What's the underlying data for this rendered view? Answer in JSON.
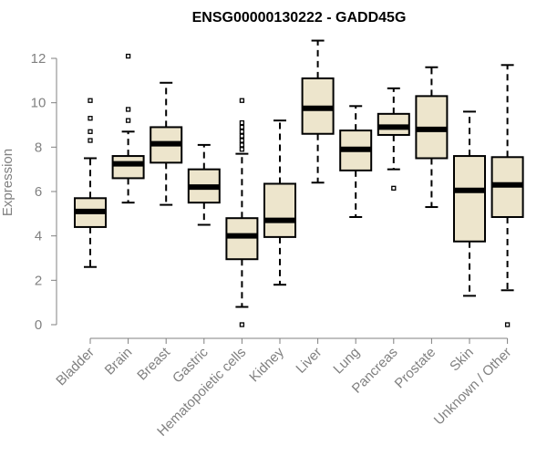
{
  "chart_data": {
    "type": "boxplot",
    "title": "ENSG00000130222 - GADD45G",
    "xlabel": "",
    "ylabel": "Expression",
    "ylim": [
      0,
      12
    ],
    "yticks": [
      0,
      2,
      4,
      6,
      8,
      10,
      12
    ],
    "colors": {
      "box_fill": "#ede5cc",
      "stroke": "#000000",
      "axis": "#808080",
      "title": "#000000"
    },
    "categories": [
      "Bladder",
      "Brain",
      "Breast",
      "Gastric",
      "Hematopoietic cells",
      "Kidney",
      "Liver",
      "Lung",
      "Pancreas",
      "Prostate",
      "Skin",
      "Unknown / Other"
    ],
    "boxes": [
      {
        "name": "Bladder",
        "whisker_low": 2.6,
        "q1": 4.4,
        "median": 5.1,
        "q3": 5.7,
        "whisker_high": 7.5,
        "outliers": [
          8.3,
          8.7,
          9.3,
          10.1
        ]
      },
      {
        "name": "Brain",
        "whisker_low": 5.5,
        "q1": 6.6,
        "median": 7.25,
        "q3": 7.6,
        "whisker_high": 8.7,
        "outliers": [
          9.2,
          9.7,
          12.1
        ]
      },
      {
        "name": "Breast",
        "whisker_low": 5.4,
        "q1": 7.3,
        "median": 8.15,
        "q3": 8.9,
        "whisker_high": 10.9,
        "outliers": []
      },
      {
        "name": "Gastric",
        "whisker_low": 4.5,
        "q1": 5.5,
        "median": 6.2,
        "q3": 7.0,
        "whisker_high": 8.1,
        "outliers": []
      },
      {
        "name": "Hematopoietic cells",
        "whisker_low": 0.8,
        "q1": 2.95,
        "median": 4.0,
        "q3": 4.8,
        "whisker_high": 7.7,
        "outliers": [
          0.0,
          7.9,
          8.1,
          8.3,
          8.5,
          8.7,
          8.9,
          9.1,
          10.1
        ]
      },
      {
        "name": "Kidney",
        "whisker_low": 1.8,
        "q1": 3.95,
        "median": 4.7,
        "q3": 6.35,
        "whisker_high": 9.2,
        "outliers": []
      },
      {
        "name": "Liver",
        "whisker_low": 6.4,
        "q1": 8.6,
        "median": 9.75,
        "q3": 11.1,
        "whisker_high": 12.8,
        "outliers": []
      },
      {
        "name": "Lung",
        "whisker_low": 4.85,
        "q1": 6.95,
        "median": 7.9,
        "q3": 8.75,
        "whisker_high": 9.85,
        "outliers": []
      },
      {
        "name": "Pancreas",
        "whisker_low": 7.0,
        "q1": 8.55,
        "median": 8.9,
        "q3": 9.5,
        "whisker_high": 10.65,
        "outliers": [
          6.15
        ]
      },
      {
        "name": "Prostate",
        "whisker_low": 5.3,
        "q1": 7.5,
        "median": 8.8,
        "q3": 10.3,
        "whisker_high": 11.6,
        "outliers": []
      },
      {
        "name": "Skin",
        "whisker_low": 1.3,
        "q1": 3.75,
        "median": 6.05,
        "q3": 7.6,
        "whisker_high": 9.6,
        "outliers": []
      },
      {
        "name": "Unknown / Other",
        "whisker_low": 1.55,
        "q1": 4.85,
        "median": 6.3,
        "q3": 7.55,
        "whisker_high": 11.7,
        "outliers": [
          0.0
        ]
      }
    ]
  }
}
